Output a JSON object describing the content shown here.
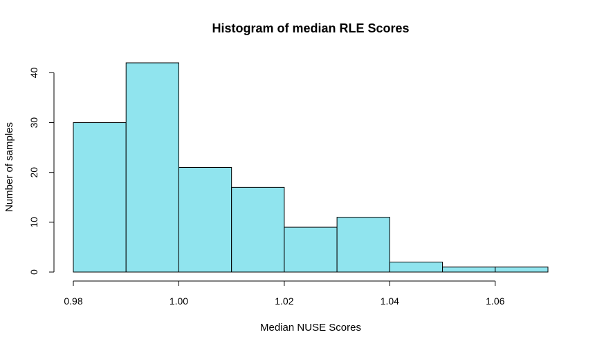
{
  "chart_data": {
    "type": "bar",
    "title": "Histogram of median RLE Scores",
    "xlabel": "Median NUSE Scores",
    "ylabel": "Number of samples",
    "bins": [
      {
        "x0": 0.98,
        "x1": 0.99,
        "count": 30
      },
      {
        "x0": 0.99,
        "x1": 1.0,
        "count": 42
      },
      {
        "x0": 1.0,
        "x1": 1.01,
        "count": 21
      },
      {
        "x0": 1.01,
        "x1": 1.02,
        "count": 17
      },
      {
        "x0": 1.02,
        "x1": 1.03,
        "count": 9
      },
      {
        "x0": 1.03,
        "x1": 1.04,
        "count": 11
      },
      {
        "x0": 1.04,
        "x1": 1.05,
        "count": 2
      },
      {
        "x0": 1.05,
        "x1": 1.06,
        "count": 1
      },
      {
        "x0": 1.06,
        "x1": 1.07,
        "count": 1
      }
    ],
    "xlim": [
      0.98,
      1.07
    ],
    "ylim": [
      0,
      42
    ],
    "x_ticks": [
      0.98,
      1.0,
      1.02,
      1.04,
      1.06
    ],
    "x_tick_labels": [
      "0.98",
      "1.00",
      "1.02",
      "1.04",
      "1.06"
    ],
    "y_ticks": [
      0,
      10,
      20,
      30,
      40
    ],
    "y_tick_labels": [
      "0",
      "10",
      "20",
      "30",
      "40"
    ],
    "bar_color": "#90e4ee",
    "grid": false,
    "legend": "none"
  }
}
